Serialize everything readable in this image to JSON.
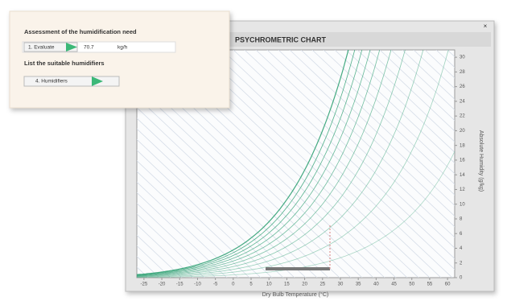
{
  "window": {
    "close": "×"
  },
  "panel": {
    "heading_1": "Assessment of the humidification need",
    "evaluate_button": "1. Evaluate",
    "result_value": "70.7",
    "result_unit": "kg/h",
    "heading_2": "List the suitable humidifiers",
    "humidifiers_button": "4. Humidifiers"
  },
  "chart_data": {
    "type": "psychrometric",
    "title": "PSYCHROMETRIC CHART",
    "x_label": "Dry Bulb Temperature (°C)",
    "y_label": "Absolute Humidity (g/kg)",
    "xlim": [
      -27,
      62
    ],
    "xticks": [
      -25,
      -20,
      -15,
      -10,
      -5,
      0,
      5,
      10,
      15,
      20,
      25,
      30,
      35,
      40,
      45,
      50,
      55,
      60
    ],
    "ylim": [
      0,
      31
    ],
    "yticks": [
      0,
      2,
      4,
      6,
      8,
      10,
      12,
      14,
      16,
      18,
      20,
      22,
      24,
      26,
      28,
      30
    ],
    "rh_curves": [
      10,
      20,
      30,
      40,
      50,
      60,
      70,
      80,
      90,
      100
    ],
    "curve_color": "#3aa57a",
    "hatch_color": "#d6dde8",
    "grid": false
  }
}
